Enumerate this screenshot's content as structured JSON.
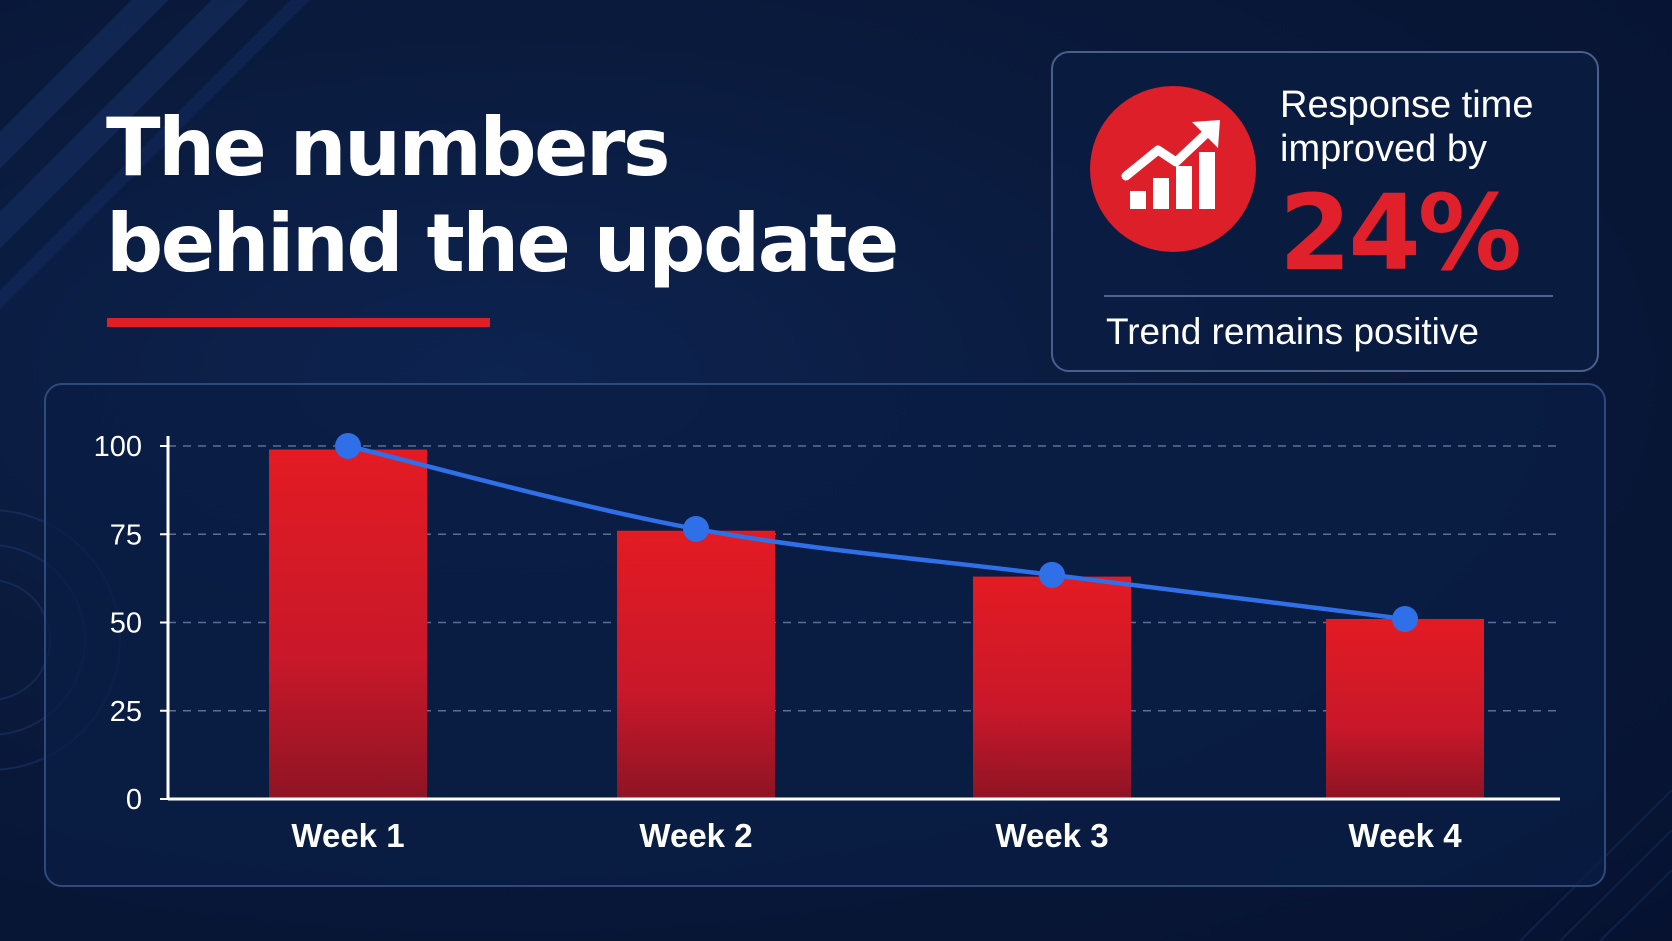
{
  "headline": {
    "line1": "The numbers",
    "line2": "behind the update"
  },
  "stat_card": {
    "icon": "trend-chart-icon",
    "label_line1": "Response time",
    "label_line2": "improved by",
    "value": "24%",
    "caption": "Trend remains positive"
  },
  "colors": {
    "accent_red": "#e01e26",
    "bar_top": "#e31b23",
    "bar_bottom": "#8e1424",
    "line_blue": "#2f6fe8",
    "background": "#0a1a3c"
  },
  "chart_data": {
    "type": "bar",
    "categories": [
      "Week 1",
      "Week 2",
      "Week 3",
      "Week 4"
    ],
    "values": [
      99,
      76,
      63,
      51
    ],
    "overlay_line": {
      "type": "line",
      "values": [
        100,
        76.5,
        63.5,
        51
      ]
    },
    "title": "",
    "xlabel": "",
    "ylabel": "",
    "ylim": [
      0,
      100
    ],
    "yticks": [
      0,
      25,
      50,
      75,
      100
    ],
    "grid": true,
    "legend": "none"
  }
}
